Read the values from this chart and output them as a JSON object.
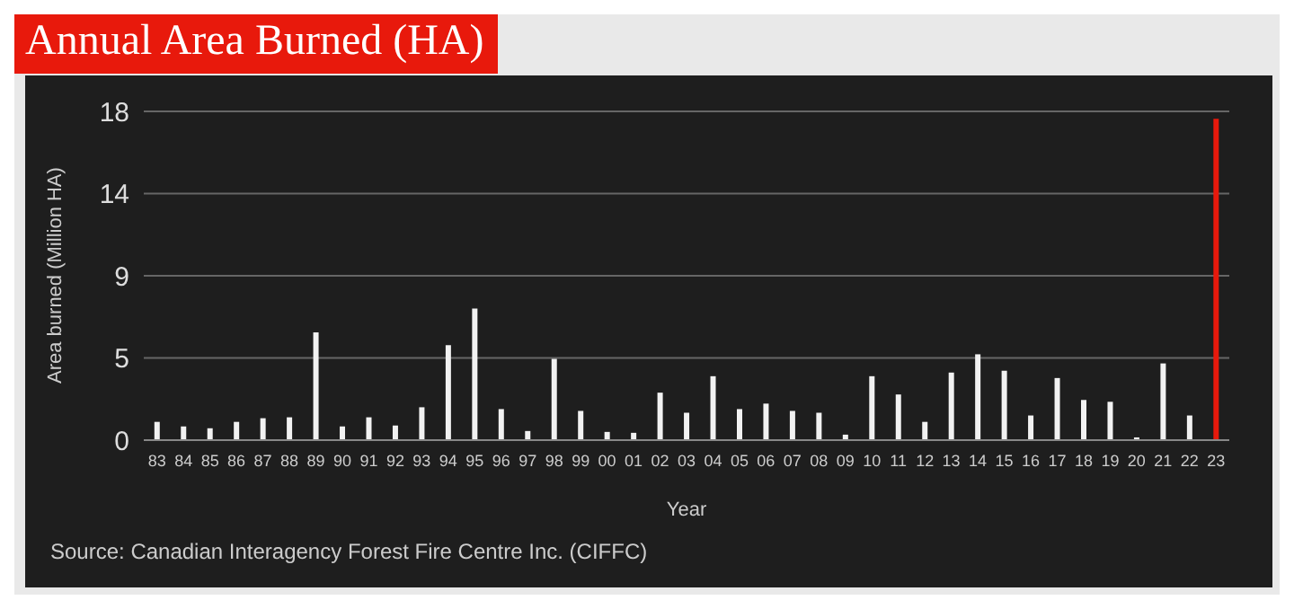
{
  "chart_data": {
    "type": "bar",
    "title": "Annual Area Burned (HA)",
    "xlabel": "Year",
    "ylabel": "Area burned (Million HA)",
    "categories": [
      "83",
      "84",
      "85",
      "86",
      "87",
      "88",
      "89",
      "90",
      "91",
      "92",
      "93",
      "94",
      "95",
      "96",
      "97",
      "98",
      "99",
      "00",
      "01",
      "02",
      "03",
      "04",
      "05",
      "06",
      "07",
      "08",
      "09",
      "10",
      "11",
      "12",
      "13",
      "14",
      "15",
      "16",
      "17",
      "18",
      "19",
      "20",
      "21",
      "22",
      "23"
    ],
    "values": [
      1.0,
      0.75,
      0.65,
      1.0,
      1.2,
      1.25,
      5.9,
      0.75,
      1.25,
      0.8,
      1.8,
      5.2,
      7.2,
      1.7,
      0.5,
      4.45,
      1.6,
      0.45,
      0.4,
      2.6,
      1.5,
      3.5,
      1.7,
      2.0,
      1.6,
      1.5,
      0.3,
      3.5,
      2.5,
      1.0,
      3.7,
      4.7,
      3.8,
      1.35,
      3.4,
      2.2,
      2.1,
      0.15,
      4.2,
      1.35,
      17.6
    ],
    "colors": [
      "#f2f2f2",
      "#f2f2f2",
      "#f2f2f2",
      "#f2f2f2",
      "#f2f2f2",
      "#f2f2f2",
      "#f2f2f2",
      "#f2f2f2",
      "#f2f2f2",
      "#f2f2f2",
      "#f2f2f2",
      "#f2f2f2",
      "#f2f2f2",
      "#f2f2f2",
      "#f2f2f2",
      "#f2f2f2",
      "#f2f2f2",
      "#f2f2f2",
      "#f2f2f2",
      "#f2f2f2",
      "#f2f2f2",
      "#f2f2f2",
      "#f2f2f2",
      "#f2f2f2",
      "#f2f2f2",
      "#f2f2f2",
      "#f2f2f2",
      "#f2f2f2",
      "#f2f2f2",
      "#f2f2f2",
      "#f2f2f2",
      "#f2f2f2",
      "#f2f2f2",
      "#f2f2f2",
      "#f2f2f2",
      "#f2f2f2",
      "#f2f2f2",
      "#f2f2f2",
      "#f2f2f2",
      "#f2f2f2",
      "#e8190c"
    ],
    "ylim": [
      0,
      18
    ],
    "yticks": [
      0,
      {
        "value": 4.5,
        "label": "5"
      },
      9,
      {
        "value": 13.5,
        "label": "14"
      },
      18
    ],
    "grid": "y",
    "annotations": [
      "Source: Canadian Interagency Forest Fire Centre Inc. (CIFFC)"
    ]
  }
}
